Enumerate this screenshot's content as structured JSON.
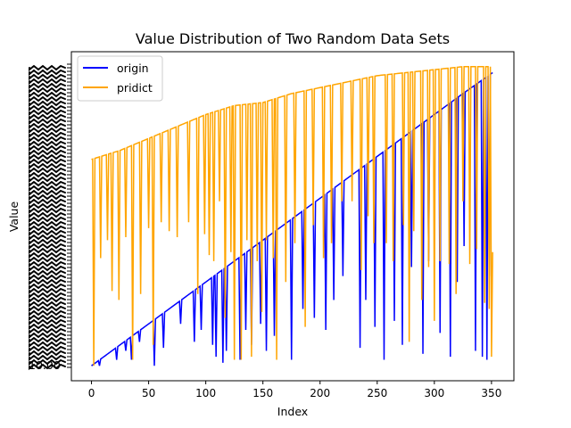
{
  "chart_data": {
    "type": "line",
    "title": "Value Distribution of Two Random Data Sets",
    "xlabel": "Index",
    "ylabel": "Value",
    "xlim": [
      -17.6,
      369.6
    ],
    "ylim": [
      -0.05,
      1.05
    ],
    "x_ticks": [
      0,
      50,
      100,
      150,
      200,
      250,
      300,
      350
    ],
    "y_tick_visible_label": "10.00",
    "legend_position": "upper left",
    "grid": false,
    "series": [
      {
        "name": "origin",
        "color": "#0000ff",
        "trend": [
          [
            0,
            0.0
          ],
          [
            25,
            0.07
          ],
          [
            50,
            0.14
          ],
          [
            75,
            0.21
          ],
          [
            100,
            0.28
          ],
          [
            125,
            0.35
          ],
          [
            150,
            0.42
          ],
          [
            175,
            0.49
          ],
          [
            200,
            0.56
          ],
          [
            225,
            0.63
          ],
          [
            250,
            0.7
          ],
          [
            275,
            0.77
          ],
          [
            300,
            0.84
          ],
          [
            325,
            0.91
          ],
          [
            351,
            0.98
          ]
        ],
        "dips": [
          [
            7,
            0.0
          ],
          [
            22,
            0.02
          ],
          [
            30,
            0.05
          ],
          [
            35,
            0.02
          ],
          [
            42,
            0.08
          ],
          [
            55,
            0.0
          ],
          [
            63,
            0.06
          ],
          [
            78,
            0.14
          ],
          [
            90,
            0.08
          ],
          [
            96,
            0.12
          ],
          [
            106,
            0.07
          ],
          [
            109,
            0.03
          ],
          [
            115,
            0.01
          ],
          [
            118,
            0.05
          ],
          [
            130,
            0.02
          ],
          [
            135,
            0.12
          ],
          [
            140,
            0.07
          ],
          [
            148,
            0.14
          ],
          [
            153,
            0.05
          ],
          [
            160,
            0.1
          ],
          [
            175,
            0.02
          ],
          [
            185,
            0.19
          ],
          [
            195,
            0.16
          ],
          [
            205,
            0.12
          ],
          [
            212,
            0.22
          ],
          [
            220,
            0.3
          ],
          [
            235,
            0.06
          ],
          [
            240,
            0.22
          ],
          [
            248,
            0.13
          ],
          [
            256,
            0.02
          ],
          [
            265,
            0.15
          ],
          [
            272,
            0.07
          ],
          [
            280,
            0.33
          ],
          [
            290,
            0.04
          ],
          [
            295,
            0.35
          ],
          [
            305,
            0.11
          ],
          [
            314,
            0.03
          ],
          [
            320,
            0.28
          ],
          [
            326,
            0.4
          ],
          [
            336,
            0.05
          ],
          [
            342,
            0.03
          ],
          [
            346,
            0.02
          ],
          [
            348,
            0.3
          ],
          [
            351,
            0.98
          ]
        ]
      },
      {
        "name": "pridict",
        "color": "#ffa500",
        "trend": [
          [
            0,
            0.69
          ],
          [
            25,
            0.72
          ],
          [
            50,
            0.76
          ],
          [
            75,
            0.8
          ],
          [
            100,
            0.84
          ],
          [
            125,
            0.87
          ],
          [
            150,
            0.88
          ],
          [
            175,
            0.91
          ],
          [
            200,
            0.93
          ],
          [
            225,
            0.95
          ],
          [
            250,
            0.97
          ],
          [
            275,
            0.98
          ],
          [
            300,
            0.99
          ],
          [
            325,
            1.0
          ],
          [
            351,
            1.0
          ]
        ],
        "dips": [
          [
            2,
            0.0
          ],
          [
            8,
            0.36
          ],
          [
            14,
            0.42
          ],
          [
            18,
            0.25
          ],
          [
            24,
            0.22
          ],
          [
            30,
            0.43
          ],
          [
            36,
            0.02
          ],
          [
            43,
            0.24
          ],
          [
            50,
            0.46
          ],
          [
            54,
            0.07
          ],
          [
            61,
            0.48
          ],
          [
            68,
            0.45
          ],
          [
            75,
            0.43
          ],
          [
            85,
            0.48
          ],
          [
            93,
            0.24
          ],
          [
            99,
            0.44
          ],
          [
            103,
            0.37
          ],
          [
            107,
            0.35
          ],
          [
            112,
            0.55
          ],
          [
            117,
            0.16
          ],
          [
            122,
            0.38
          ],
          [
            125,
            0.02
          ],
          [
            131,
            0.02
          ],
          [
            136,
            0.42
          ],
          [
            140,
            0.03
          ],
          [
            145,
            0.35
          ],
          [
            149,
            0.18
          ],
          [
            153,
            0.42
          ],
          [
            159,
            0.36
          ],
          [
            162,
            0.02
          ],
          [
            170,
            0.28
          ],
          [
            178,
            0.41
          ],
          [
            187,
            0.13
          ],
          [
            194,
            0.47
          ],
          [
            203,
            0.36
          ],
          [
            210,
            0.41
          ],
          [
            219,
            0.55
          ],
          [
            228,
            0.55
          ],
          [
            236,
            0.32
          ],
          [
            242,
            0.5
          ],
          [
            247,
            0.41
          ],
          [
            258,
            0.41
          ],
          [
            264,
            0.35
          ],
          [
            273,
            0.47
          ],
          [
            278,
            0.08
          ],
          [
            282,
            0.45
          ],
          [
            289,
            0.22
          ],
          [
            295,
            0.33
          ],
          [
            300,
            0.15
          ],
          [
            305,
            0.35
          ],
          [
            313,
            0.34
          ],
          [
            319,
            0.24
          ],
          [
            325,
            0.55
          ],
          [
            331,
            0.34
          ],
          [
            337,
            0.39
          ],
          [
            344,
            0.21
          ],
          [
            348,
            0.19
          ],
          [
            350,
            0.03
          ],
          [
            351,
            0.38
          ]
        ]
      }
    ]
  }
}
